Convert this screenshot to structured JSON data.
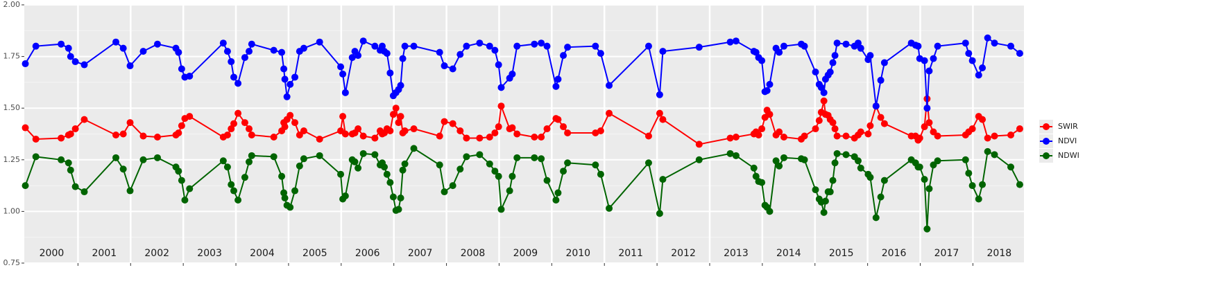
{
  "chart_data": {
    "type": "line",
    "x": [
      2000.0,
      2000.2,
      2000.68,
      2000.82,
      2000.86,
      2000.95,
      2001.12,
      2001.72,
      2001.86,
      2001.99,
      2002.24,
      2002.51,
      2002.86,
      2002.91,
      2002.97,
      2003.03,
      2003.12,
      2003.76,
      2003.84,
      2003.91,
      2003.96,
      2004.04,
      2004.17,
      2004.25,
      2004.3,
      2004.72,
      2004.87,
      2004.91,
      2004.93,
      2004.97,
      2005.03,
      2005.12,
      2005.21,
      2005.29,
      2005.59,
      2005.99,
      2006.03,
      2006.08,
      2006.21,
      2006.26,
      2006.32,
      2006.42,
      2006.64,
      2006.74,
      2006.78,
      2006.82,
      2006.87,
      2006.93,
      2006.99,
      2007.04,
      2007.09,
      2007.13,
      2007.17,
      2007.21,
      2007.38,
      2007.87,
      2007.96,
      2008.12,
      2008.26,
      2008.38,
      2008.63,
      2008.82,
      2008.92,
      2008.99,
      2009.04,
      2009.2,
      2009.25,
      2009.34,
      2009.67,
      2009.8,
      2009.91,
      2010.08,
      2010.12,
      2010.22,
      2010.3,
      2010.83,
      2010.93,
      2011.09,
      2011.84,
      2012.05,
      2012.11,
      2012.8,
      2013.39,
      2013.5,
      2013.84,
      2013.88,
      2013.93,
      2013.99,
      2014.05,
      2014.09,
      2014.14,
      2014.26,
      2014.32,
      2014.41,
      2014.74,
      2014.8,
      2015.01,
      2015.08,
      2015.12,
      2015.17,
      2015.2,
      2015.25,
      2015.29,
      2015.34,
      2015.38,
      2015.42,
      2015.59,
      2015.75,
      2015.82,
      2015.87,
      2016.01,
      2016.05,
      2016.16,
      2016.25,
      2016.32,
      2016.83,
      2016.91,
      2016.96,
      2016.99,
      2017.08,
      2017.13,
      2017.17,
      2017.25,
      2017.33,
      2017.86,
      2017.92,
      2017.99,
      2018.11,
      2018.18,
      2018.28,
      2018.41,
      2018.72,
      2018.89
    ],
    "series": [
      {
        "name": "SWIR",
        "color": "#ff0000",
        "values": [
          1.405,
          1.35,
          1.355,
          1.37,
          1.375,
          1.4,
          1.445,
          1.37,
          1.375,
          1.43,
          1.365,
          1.36,
          1.37,
          1.38,
          1.415,
          1.45,
          1.46,
          1.36,
          1.37,
          1.4,
          1.425,
          1.475,
          1.43,
          1.4,
          1.37,
          1.36,
          1.39,
          1.43,
          1.41,
          1.445,
          1.465,
          1.43,
          1.37,
          1.39,
          1.35,
          1.39,
          1.46,
          1.375,
          1.375,
          1.38,
          1.4,
          1.365,
          1.355,
          1.39,
          1.375,
          1.38,
          1.4,
          1.39,
          1.47,
          1.5,
          1.43,
          1.46,
          1.38,
          1.39,
          1.4,
          1.365,
          1.435,
          1.425,
          1.39,
          1.355,
          1.355,
          1.36,
          1.38,
          1.41,
          1.51,
          1.4,
          1.405,
          1.375,
          1.36,
          1.36,
          1.4,
          1.45,
          1.445,
          1.41,
          1.38,
          1.38,
          1.39,
          1.475,
          1.365,
          1.475,
          1.445,
          1.325,
          1.355,
          1.36,
          1.375,
          1.385,
          1.37,
          1.4,
          1.455,
          1.49,
          1.47,
          1.37,
          1.385,
          1.36,
          1.35,
          1.365,
          1.4,
          1.44,
          1.48,
          1.535,
          1.47,
          1.465,
          1.445,
          1.43,
          1.4,
          1.365,
          1.365,
          1.355,
          1.37,
          1.385,
          1.375,
          1.415,
          1.51,
          1.455,
          1.425,
          1.365,
          1.365,
          1.345,
          1.355,
          1.41,
          1.545,
          1.43,
          1.385,
          1.365,
          1.37,
          1.385,
          1.4,
          1.46,
          1.445,
          1.355,
          1.365,
          1.37,
          1.4
        ]
      },
      {
        "name": "NDVI",
        "color": "#0000ff",
        "values": [
          1.715,
          1.8,
          1.81,
          1.79,
          1.75,
          1.725,
          1.71,
          1.82,
          1.79,
          1.705,
          1.775,
          1.81,
          1.79,
          1.77,
          1.69,
          1.65,
          1.655,
          1.815,
          1.775,
          1.725,
          1.65,
          1.62,
          1.745,
          1.775,
          1.81,
          1.78,
          1.77,
          1.69,
          1.64,
          1.555,
          1.615,
          1.65,
          1.775,
          1.79,
          1.82,
          1.7,
          1.665,
          1.575,
          1.745,
          1.775,
          1.755,
          1.825,
          1.8,
          1.78,
          1.8,
          1.775,
          1.765,
          1.67,
          1.56,
          1.575,
          1.59,
          1.61,
          1.74,
          1.8,
          1.8,
          1.77,
          1.705,
          1.69,
          1.76,
          1.8,
          1.815,
          1.8,
          1.78,
          1.71,
          1.6,
          1.645,
          1.665,
          1.8,
          1.81,
          1.815,
          1.8,
          1.605,
          1.64,
          1.755,
          1.795,
          1.8,
          1.765,
          1.61,
          1.8,
          1.565,
          1.775,
          1.795,
          1.82,
          1.825,
          1.775,
          1.77,
          1.745,
          1.73,
          1.58,
          1.585,
          1.615,
          1.79,
          1.77,
          1.8,
          1.81,
          1.8,
          1.675,
          1.615,
          1.6,
          1.575,
          1.64,
          1.66,
          1.675,
          1.72,
          1.755,
          1.815,
          1.81,
          1.8,
          1.815,
          1.79,
          1.735,
          1.755,
          1.51,
          1.635,
          1.72,
          1.815,
          1.805,
          1.8,
          1.74,
          1.73,
          1.5,
          1.68,
          1.74,
          1.8,
          1.815,
          1.765,
          1.73,
          1.66,
          1.695,
          1.84,
          1.815,
          1.8,
          1.765
        ]
      },
      {
        "name": "NDWI",
        "color": "#006400",
        "values": [
          1.125,
          1.265,
          1.25,
          1.235,
          1.2,
          1.12,
          1.095,
          1.26,
          1.205,
          1.1,
          1.25,
          1.26,
          1.215,
          1.195,
          1.15,
          1.055,
          1.11,
          1.245,
          1.215,
          1.13,
          1.1,
          1.055,
          1.165,
          1.24,
          1.27,
          1.265,
          1.17,
          1.09,
          1.065,
          1.03,
          1.02,
          1.1,
          1.22,
          1.255,
          1.27,
          1.18,
          1.06,
          1.075,
          1.25,
          1.24,
          1.21,
          1.28,
          1.275,
          1.225,
          1.235,
          1.215,
          1.18,
          1.14,
          1.07,
          1.005,
          1.01,
          1.065,
          1.2,
          1.23,
          1.305,
          1.225,
          1.095,
          1.125,
          1.205,
          1.265,
          1.275,
          1.23,
          1.195,
          1.17,
          1.01,
          1.1,
          1.17,
          1.26,
          1.26,
          1.255,
          1.15,
          1.055,
          1.09,
          1.195,
          1.235,
          1.225,
          1.18,
          1.015,
          1.235,
          0.99,
          1.155,
          1.25,
          1.28,
          1.27,
          1.21,
          1.17,
          1.145,
          1.14,
          1.03,
          1.02,
          1.0,
          1.245,
          1.22,
          1.26,
          1.255,
          1.25,
          1.105,
          1.06,
          1.045,
          0.995,
          1.05,
          1.095,
          1.095,
          1.15,
          1.235,
          1.28,
          1.275,
          1.265,
          1.245,
          1.21,
          1.18,
          1.165,
          0.97,
          1.07,
          1.15,
          1.25,
          1.235,
          1.215,
          1.215,
          1.155,
          0.915,
          1.11,
          1.225,
          1.245,
          1.25,
          1.185,
          1.125,
          1.06,
          1.13,
          1.29,
          1.275,
          1.215,
          1.13
        ]
      }
    ],
    "xlim": [
      1999.98,
      2018.97
    ],
    "xticks": [
      2001,
      2002,
      2003,
      2004,
      2005,
      2006,
      2007,
      2008,
      2009,
      2010,
      2011,
      2012,
      2013,
      2014,
      2015,
      2016,
      2017,
      2018
    ],
    "ylim": [
      0.75,
      2.0
    ],
    "yticks": [
      {
        "value": 0.75,
        "label": "0.75"
      },
      {
        "value": 1,
        "label": "1.00"
      },
      {
        "value": 1.25,
        "label": "1.25"
      },
      {
        "value": 1.5,
        "label": "1.50"
      },
      {
        "value": 1.75,
        "label": "1.75"
      },
      {
        "value": 2,
        "label": "2.00"
      }
    ],
    "grid": true,
    "legend": "right",
    "annotations": [
      {
        "x": 2000.5,
        "text": "2000"
      },
      {
        "x": 2001.5,
        "text": "2001"
      },
      {
        "x": 2002.5,
        "text": "2002"
      },
      {
        "x": 2003.5,
        "text": "2003"
      },
      {
        "x": 2004.5,
        "text": "2004"
      },
      {
        "x": 2005.5,
        "text": "2005"
      },
      {
        "x": 2006.5,
        "text": "2006"
      },
      {
        "x": 2007.5,
        "text": "2007"
      },
      {
        "x": 2008.5,
        "text": "2008"
      },
      {
        "x": 2009.5,
        "text": "2009"
      },
      {
        "x": 2010.5,
        "text": "2010"
      },
      {
        "x": 2011.5,
        "text": "2011"
      },
      {
        "x": 2012.5,
        "text": "2012"
      },
      {
        "x": 2013.5,
        "text": "2013"
      },
      {
        "x": 2014.5,
        "text": "2014"
      },
      {
        "x": 2015.5,
        "text": "2015"
      },
      {
        "x": 2016.5,
        "text": "2016"
      },
      {
        "x": 2017.5,
        "text": "2017"
      },
      {
        "x": 2018.5,
        "text": "2018"
      }
    ]
  }
}
